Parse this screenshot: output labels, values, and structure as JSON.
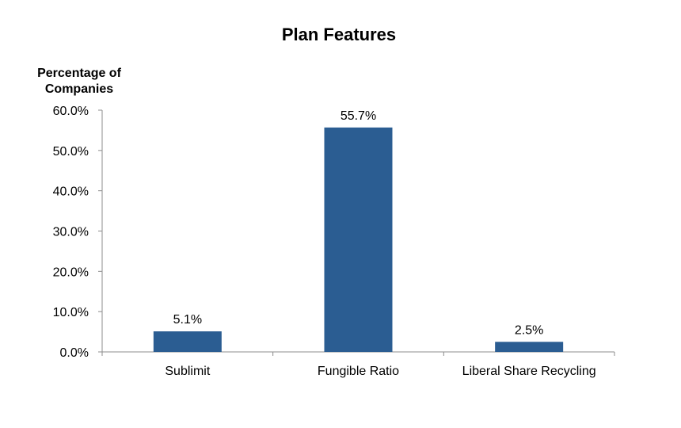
{
  "chart_data": {
    "type": "bar",
    "title": "Plan Features",
    "ylabel_lines": [
      "Percentage of",
      "Companies"
    ],
    "xlabel": "",
    "categories": [
      "Sublimit",
      "Fungible Ratio",
      "Liberal Share Recycling"
    ],
    "values": [
      5.1,
      55.7,
      2.5
    ],
    "value_labels": [
      "5.1%",
      "55.7%",
      "2.5%"
    ],
    "ylim": [
      0,
      60
    ],
    "yticks": [
      0,
      10,
      20,
      30,
      40,
      50,
      60
    ],
    "ytick_labels": [
      "0.0%",
      "10.0%",
      "20.0%",
      "30.0%",
      "40.0%",
      "50.0%",
      "60.0%"
    ],
    "grid": false,
    "legend": "none",
    "bar_color": "#2b5d92"
  }
}
